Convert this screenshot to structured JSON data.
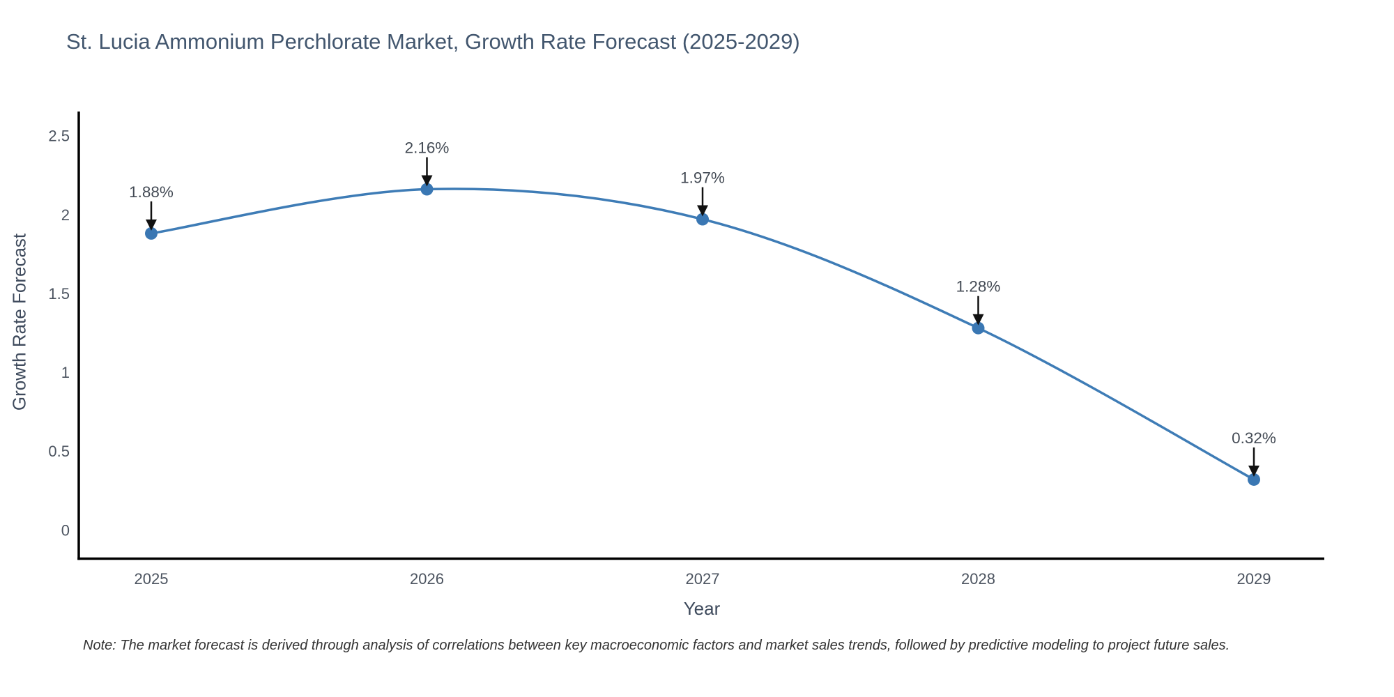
{
  "chart_data": {
    "type": "line",
    "line_shape": "spline",
    "title": "St. Lucia Ammonium Perchlorate Market, Growth Rate Forecast (2025-2029)",
    "xlabel": "Year",
    "ylabel": "Growth Rate Forecast",
    "x": [
      2025,
      2026,
      2027,
      2028,
      2029
    ],
    "y": [
      1.88,
      2.16,
      1.97,
      1.28,
      0.32
    ],
    "point_labels": [
      "1.88%",
      "2.16%",
      "1.97%",
      "1.28%",
      "0.32%"
    ],
    "xtick_labels": [
      "2025",
      "2026",
      "2027",
      "2028",
      "2029"
    ],
    "ytick_values": [
      0,
      0.5,
      1,
      1.5,
      2,
      2.5
    ],
    "ytick_labels": [
      "0",
      "0.5",
      "1",
      "1.5",
      "2",
      "2.5"
    ],
    "ylim": [
      -0.19,
      2.66
    ],
    "xlim": [
      2024.74,
      2029.26
    ],
    "grid": false,
    "legend": "none",
    "colors": {
      "line": "#3e7cb6",
      "marker": "#3a77b3",
      "axis_line": "#000000",
      "tick_text": "#4c5460",
      "annotation_text": "#444b55",
      "annotation_arrow": "#111111",
      "title_text": "#42566e",
      "axis_title_text": "#3e4a5c",
      "note_text": "#333333",
      "background": "#ffffff"
    },
    "note": "Note: The market forecast is derived through analysis of correlations between key macroeconomic factors and market sales trends, followed by predictive modeling to project future sales."
  }
}
